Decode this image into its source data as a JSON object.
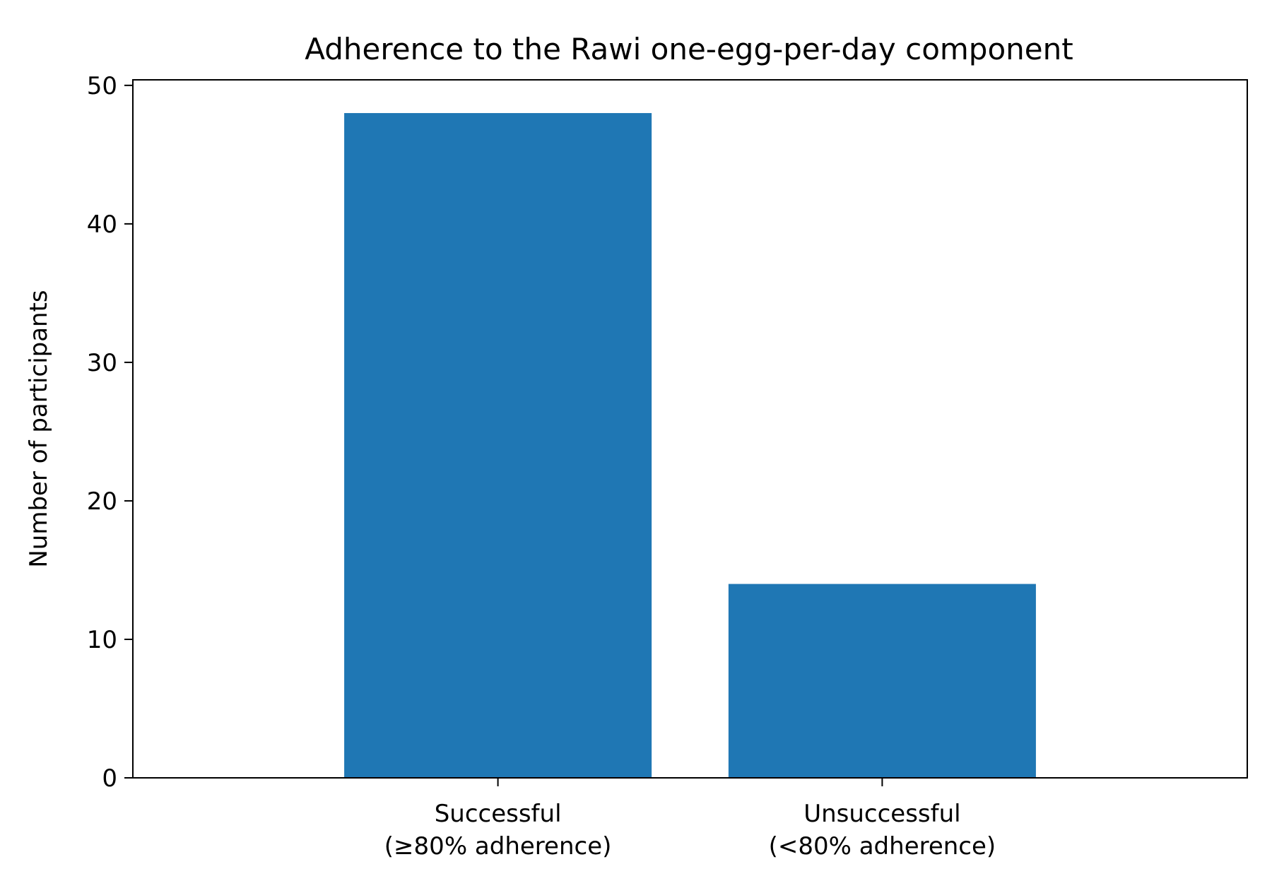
{
  "chart_data": {
    "type": "bar",
    "title": "Adherence to the Rawi one-egg-per-day component",
    "xlabel": "",
    "ylabel": "Number of participants",
    "categories": [
      [
        "Successful",
        "(≥80% adherence)"
      ],
      [
        "Unsuccessful",
        "(<80% adherence)"
      ]
    ],
    "values": [
      48,
      14
    ],
    "ylim": [
      0,
      50.4
    ],
    "yticks": [
      0,
      10,
      20,
      30,
      40,
      50
    ],
    "grid": false,
    "legend": "none",
    "bar_color": "#1f77b4"
  }
}
